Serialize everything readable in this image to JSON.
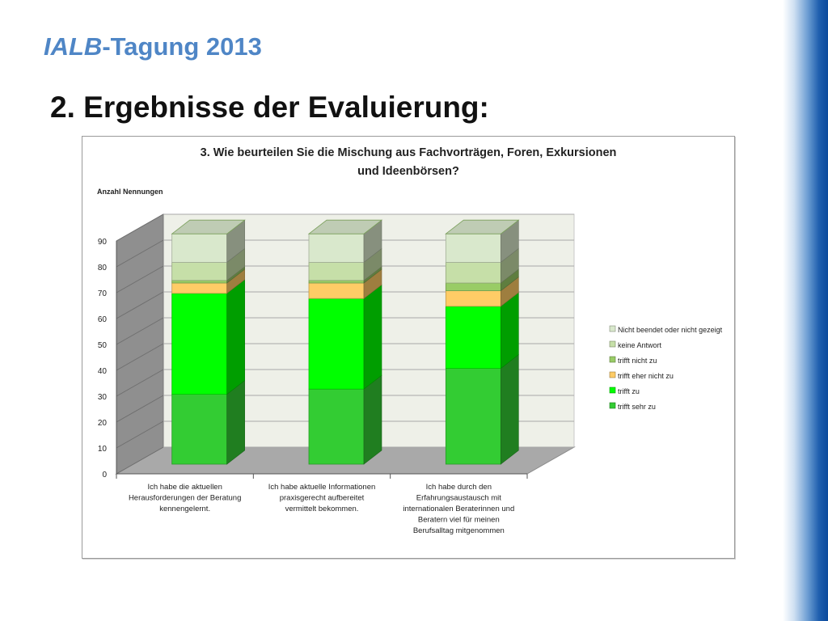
{
  "header": {
    "title_italic": "IALB",
    "title_rest": "-Tagung 2013",
    "heading": "2. Ergebnisse der Evaluierung:"
  },
  "colors": {
    "title_blue": "#4f86c6",
    "side_bar_blue": "#0b4a9c"
  },
  "chart_data": {
    "type": "bar",
    "stacked": true,
    "three_d": true,
    "title_line1": "3. Wie beurteilen Sie die Mischung aus Fachvorträgen, Foren, Exkursionen",
    "title_line2": "und Ideenbörsen?",
    "ylabel": "Anzahl Nennungen",
    "ylim": [
      0,
      90
    ],
    "yticks": [
      0,
      10,
      20,
      30,
      40,
      50,
      60,
      70,
      80,
      90
    ],
    "grid": true,
    "legend_position": "right",
    "categories": [
      [
        "Ich habe die aktuellen",
        "Herausforderungen der Beratung",
        "kennengelernt."
      ],
      [
        "Ich habe aktuelle Informationen",
        "praxisgerecht aufbereitet",
        "vermittelt bekommen."
      ],
      [
        "Ich habe durch den",
        "Erfahrungsaustausch mit",
        "internationalen Beraterinnen und",
        "Beratern viel für meinen",
        "Berufsalltag mitgenommen"
      ]
    ],
    "series": [
      {
        "name": "trifft sehr zu",
        "color": "#33cc33",
        "values": [
          27,
          29,
          37
        ]
      },
      {
        "name": "trifft zu",
        "color": "#00ff00",
        "values": [
          39,
          35,
          24
        ]
      },
      {
        "name": "trifft eher nicht zu",
        "color": "#ffcc66",
        "values": [
          4,
          6,
          6
        ]
      },
      {
        "name": "trifft nicht zu",
        "color": "#99cc66",
        "values": [
          1,
          1,
          3
        ]
      },
      {
        "name": "keine Antwort",
        "color": "#c6dfa8",
        "values": [
          7,
          7,
          8
        ]
      },
      {
        "name": "Nicht beendet oder nicht gezeigt",
        "color": "#d9e8cc",
        "values": [
          11,
          11,
          11
        ]
      }
    ]
  }
}
